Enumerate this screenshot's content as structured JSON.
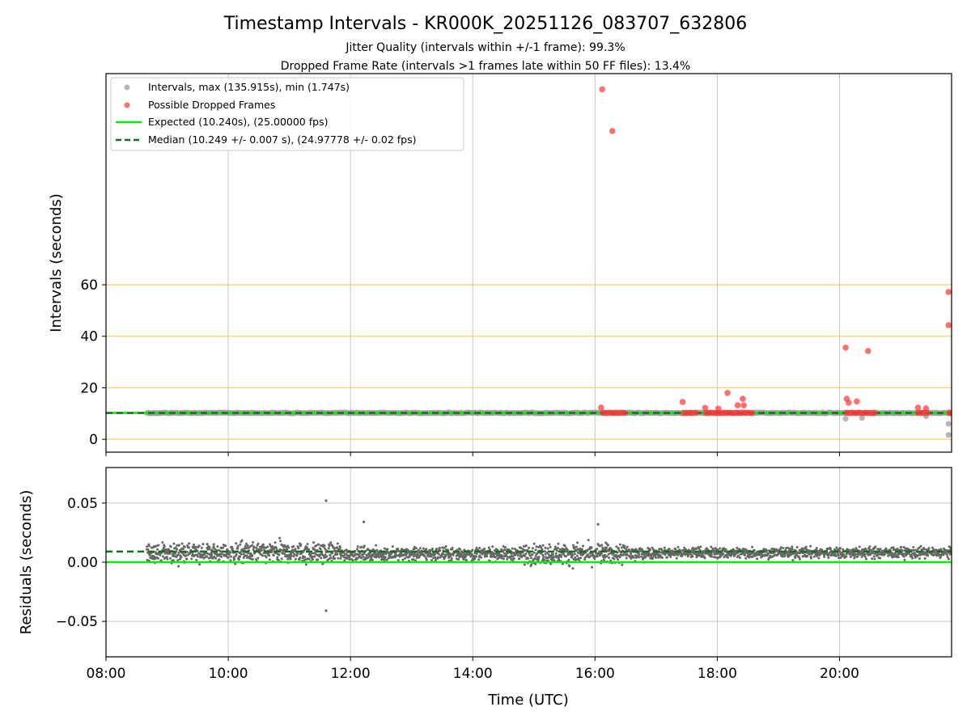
{
  "figure": {
    "title": "Timestamp Intervals - KR000K_20251126_083707_632806",
    "subtitle1": "Jitter Quality (intervals within +/-1 frame): 99.3%",
    "subtitle2": "Dropped Frame Rate (intervals >1 frames late within 50 FF files): 13.4%",
    "xlabel": "Time (UTC)"
  },
  "colors": {
    "interval": "#999999",
    "dropped": "#ff3333",
    "expected": "#00ee00",
    "median": "#1a6e1a",
    "hlines": "#f5c842",
    "grid": "#c8c8c8",
    "residual": "#666666"
  },
  "chart_data": [
    {
      "type": "scatter",
      "ylabel": "Intervals (seconds)",
      "x_axis": "time (UTC)",
      "xlim": [
        "08:00",
        "21:50"
      ],
      "ylim": [
        -5,
        142
      ],
      "yticks": [
        0,
        20,
        40,
        60
      ],
      "xticks": [
        "08:00",
        "10:00",
        "12:00",
        "14:00",
        "16:00",
        "18:00",
        "20:00"
      ],
      "grid": "vertical lines at x ticks",
      "horizontal_lines": [
        0,
        20,
        40,
        60
      ],
      "legend_position": "top-left",
      "legend": [
        "Intervals, max (135.915s), min (1.747s)",
        "Possible Dropped Frames",
        "Expected (10.240s), (25.00000 fps)",
        "Median (10.249 +/- 0.007 s), (24.97778 +/- 0.02 fps)"
      ],
      "expected_value": 10.24,
      "median_value": 10.249,
      "intervals_baseline": {
        "value": 10.24,
        "x_start": "08:40",
        "x_end": "21:50"
      },
      "intervals_outliers": [
        {
          "x": "20:06",
          "y": 8.0
        },
        {
          "x": "20:22",
          "y": 8.3
        },
        {
          "x": "21:25",
          "y": 9.0
        },
        {
          "x": "21:47",
          "y": 6.0
        },
        {
          "x": "21:47",
          "y": 1.7
        }
      ],
      "dropped_frames": [
        {
          "x": "16:07",
          "y": 135.9
        },
        {
          "x": "16:17",
          "y": 119.7
        },
        {
          "x": "16:06",
          "y": 12.3
        },
        {
          "x": "16:08",
          "y": 10.3
        },
        {
          "x": "16:11",
          "y": 10.2
        },
        {
          "x": "16:14",
          "y": 10.3
        },
        {
          "x": "16:17",
          "y": 10.2
        },
        {
          "x": "16:20",
          "y": 10.3
        },
        {
          "x": "16:23",
          "y": 10.2
        },
        {
          "x": "16:26",
          "y": 10.3
        },
        {
          "x": "16:29",
          "y": 10.2
        },
        {
          "x": "17:26",
          "y": 14.5
        },
        {
          "x": "17:27",
          "y": 10.3
        },
        {
          "x": "17:30",
          "y": 10.2
        },
        {
          "x": "17:33",
          "y": 10.3
        },
        {
          "x": "17:36",
          "y": 10.2
        },
        {
          "x": "17:39",
          "y": 10.3
        },
        {
          "x": "17:48",
          "y": 12.2
        },
        {
          "x": "17:49",
          "y": 10.3
        },
        {
          "x": "17:52",
          "y": 10.2
        },
        {
          "x": "17:55",
          "y": 10.3
        },
        {
          "x": "17:58",
          "y": 10.2
        },
        {
          "x": "18:01",
          "y": 11.9
        },
        {
          "x": "18:01",
          "y": 10.3
        },
        {
          "x": "18:04",
          "y": 10.2
        },
        {
          "x": "18:07",
          "y": 10.3
        },
        {
          "x": "18:10",
          "y": 18.0
        },
        {
          "x": "18:10",
          "y": 10.2
        },
        {
          "x": "18:13",
          "y": 10.3
        },
        {
          "x": "18:16",
          "y": 10.2
        },
        {
          "x": "18:19",
          "y": 10.3
        },
        {
          "x": "18:20",
          "y": 13.2
        },
        {
          "x": "18:22",
          "y": 10.2
        },
        {
          "x": "18:25",
          "y": 15.7
        },
        {
          "x": "18:25",
          "y": 10.3
        },
        {
          "x": "18:26",
          "y": 13.2
        },
        {
          "x": "18:28",
          "y": 10.2
        },
        {
          "x": "18:31",
          "y": 10.3
        },
        {
          "x": "18:34",
          "y": 10.2
        },
        {
          "x": "20:06",
          "y": 35.6
        },
        {
          "x": "20:07",
          "y": 15.7
        },
        {
          "x": "20:09",
          "y": 14.2
        },
        {
          "x": "20:07",
          "y": 10.3
        },
        {
          "x": "20:10",
          "y": 10.2
        },
        {
          "x": "20:13",
          "y": 10.3
        },
        {
          "x": "20:16",
          "y": 10.2
        },
        {
          "x": "20:17",
          "y": 14.7
        },
        {
          "x": "20:19",
          "y": 10.3
        },
        {
          "x": "20:22",
          "y": 10.2
        },
        {
          "x": "20:25",
          "y": 10.3
        },
        {
          "x": "20:28",
          "y": 34.3
        },
        {
          "x": "20:28",
          "y": 10.2
        },
        {
          "x": "20:31",
          "y": 10.3
        },
        {
          "x": "20:34",
          "y": 10.2
        },
        {
          "x": "21:17",
          "y": 12.3
        },
        {
          "x": "21:17",
          "y": 10.3
        },
        {
          "x": "21:20",
          "y": 10.2
        },
        {
          "x": "21:23",
          "y": 10.3
        },
        {
          "x": "21:25",
          "y": 12.0
        },
        {
          "x": "21:26",
          "y": 10.2
        },
        {
          "x": "21:47",
          "y": 57.2
        },
        {
          "x": "21:47",
          "y": 44.3
        },
        {
          "x": "21:48",
          "y": 10.3
        },
        {
          "x": "21:49",
          "y": 10.2
        }
      ]
    },
    {
      "type": "scatter",
      "ylabel": "Residuals (seconds)",
      "xlabel": "Time (UTC)",
      "xlim": [
        "08:00",
        "21:50"
      ],
      "ylim": [
        -0.08,
        0.08
      ],
      "yticks": [
        -0.05,
        0.0,
        0.05
      ],
      "ytick_labels": [
        "−0.05",
        "0.00",
        "0.05"
      ],
      "xticks": [
        "08:00",
        "10:00",
        "12:00",
        "14:00",
        "16:00",
        "18:00",
        "20:00"
      ],
      "grid": "both",
      "expected_residual": 0.0,
      "median_residual": 0.009,
      "residual_bands": [
        {
          "x_start": "08:40",
          "x_end": "10:00",
          "center": 0.008,
          "spread": 0.01
        },
        {
          "x_start": "10:00",
          "x_end": "11:50",
          "center": 0.008,
          "spread": 0.011
        },
        {
          "x_start": "11:50",
          "x_end": "14:50",
          "center": 0.007,
          "spread": 0.007
        },
        {
          "x_start": "14:50",
          "x_end": "16:50",
          "center": 0.007,
          "spread": 0.011
        },
        {
          "x_start": "16:50",
          "x_end": "21:50",
          "center": 0.008,
          "spread": 0.006
        }
      ],
      "residual_outliers": [
        {
          "x": "11:36",
          "y": 0.052
        },
        {
          "x": "11:36",
          "y": -0.041
        },
        {
          "x": "12:13",
          "y": 0.034
        },
        {
          "x": "16:03",
          "y": 0.032
        }
      ]
    }
  ]
}
